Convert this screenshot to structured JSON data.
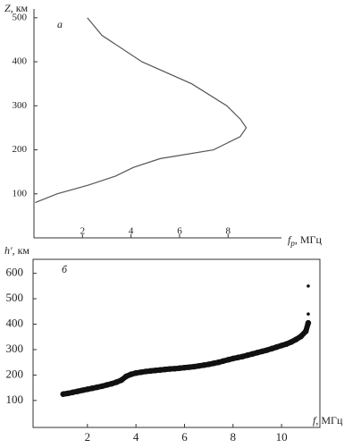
{
  "chart_data": [
    {
      "type": "line",
      "color": "#555555",
      "y_label": {
        "symbol": "Z",
        "unit": ", км"
      },
      "x_label": {
        "symbol": "f",
        "subscript": "p",
        "unit": ", МГц"
      },
      "panel_label": "а",
      "values": [
        500,
        460,
        400,
        350,
        300,
        270,
        250,
        230,
        200,
        180,
        160,
        140,
        120,
        100,
        80
      ],
      "x": [
        2.2,
        2.8,
        4.45,
        6.5,
        7.95,
        8.5,
        8.75,
        8.5,
        7.4,
        5.2,
        4.1,
        3.35,
        2.25,
        0.95,
        0.05
      ],
      "xlim": [
        0,
        10.2
      ],
      "ylim": [
        0,
        520
      ],
      "xticks": [
        2,
        4,
        6,
        8
      ],
      "yticks": [
        100,
        200,
        300,
        400,
        500
      ]
    },
    {
      "type": "scatter",
      "color": "#111111",
      "y_label": {
        "symbol": "h'",
        "unit": ", км"
      },
      "x_label": {
        "symbol": "f",
        "unit": ", МГц"
      },
      "panel_label": "б",
      "x": [
        1.0,
        1.2,
        1.4,
        1.6,
        1.8,
        2.0,
        2.2,
        2.4,
        2.6,
        2.8,
        3.0,
        3.2,
        3.4,
        3.6,
        3.8,
        4.0,
        4.2,
        4.4,
        4.6,
        4.8,
        5.0,
        5.2,
        5.4,
        5.6,
        5.8,
        6.0,
        6.2,
        6.4,
        6.6,
        6.8,
        7.0,
        7.2,
        7.4,
        7.6,
        7.8,
        8.0,
        8.2,
        8.4,
        8.6,
        8.8,
        9.0,
        9.2,
        9.4,
        9.6,
        9.8,
        10.0,
        10.2,
        10.4,
        10.6,
        10.8,
        11.0,
        11.1,
        11.1,
        11.1
      ],
      "values": [
        125,
        128,
        132,
        136,
        140,
        144,
        148,
        152,
        156,
        161,
        166,
        172,
        180,
        195,
        203,
        208,
        211,
        214,
        216,
        218,
        220,
        222,
        224,
        225,
        227,
        229,
        231,
        233,
        236,
        239,
        242,
        246,
        250,
        255,
        260,
        265,
        269,
        273,
        278,
        283,
        288,
        293,
        298,
        304,
        310,
        316,
        322,
        330,
        340,
        352,
        372,
        405,
        440,
        550
      ],
      "xlim": [
        -0.24,
        11.58
      ],
      "ylim": [
        -6,
        655
      ],
      "xticks": [
        2,
        4,
        6,
        8,
        10
      ],
      "yticks": [
        100,
        200,
        300,
        400,
        500,
        600
      ]
    }
  ]
}
